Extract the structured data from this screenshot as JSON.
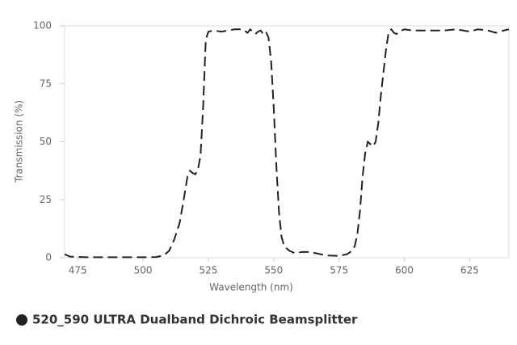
{
  "chart_data": {
    "type": "line",
    "x_label": "Wavelength (nm)",
    "y_label": "Transmission (%)",
    "xlim": [
      470,
      640
    ],
    "ylim": [
      0,
      100
    ],
    "xticks": [
      475,
      500,
      525,
      550,
      575,
      600,
      625
    ],
    "yticks": [
      0,
      25,
      50,
      75,
      100
    ],
    "grid": false,
    "legend": "bottom-left",
    "series": [
      {
        "name": "520_590 ULTRA Dualband Dichroic Beamsplitter",
        "color": "#222222",
        "x": [
          470,
          472,
          475,
          480,
          490,
          500,
          505,
          508,
          510,
          512,
          514,
          516,
          517,
          518,
          519,
          520,
          521,
          522,
          523,
          524,
          525,
          527,
          530,
          535,
          538,
          540,
          541,
          542,
          543,
          544,
          545,
          546,
          547,
          548,
          549,
          550,
          551,
          552,
          553,
          554,
          556,
          558,
          561,
          563,
          566,
          570,
          575,
          578,
          580,
          581,
          582,
          583,
          584,
          585,
          586,
          587,
          588,
          589,
          590,
          591,
          592,
          593,
          594,
          595,
          596,
          597,
          598,
          600,
          603,
          610,
          615,
          620,
          625,
          628,
          632,
          635,
          638,
          640
        ],
        "values": [
          1.5,
          0.5,
          0.3,
          0.2,
          0.2,
          0.2,
          0.3,
          1,
          3,
          8,
          15,
          28,
          35,
          37.5,
          36.5,
          36,
          38,
          44,
          65,
          94,
          97.5,
          98,
          97.5,
          98.5,
          98.5,
          97,
          98.5,
          97.5,
          96.5,
          97.5,
          98,
          96.5,
          97.5,
          95,
          85,
          65,
          40,
          20,
          9,
          5,
          3,
          2,
          2.5,
          2.5,
          2,
          1,
          0.8,
          1.5,
          3,
          5,
          10,
          20,
          35,
          45,
          50,
          49,
          48,
          50,
          58,
          70,
          80,
          90,
          97.5,
          98.5,
          97,
          96.5,
          97.5,
          98.5,
          98,
          98,
          98,
          98.5,
          97.5,
          98.5,
          98,
          97,
          98,
          98.5
        ]
      }
    ]
  }
}
